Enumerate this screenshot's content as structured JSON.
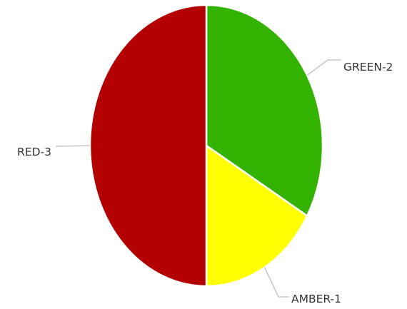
{
  "chart_data": {
    "type": "pie",
    "categories": [
      "GREEN-2",
      "AMBER-1",
      "RED-3"
    ],
    "values": [
      2,
      1,
      3
    ],
    "colors": [
      "#33b300",
      "#ffff00",
      "#b30000"
    ],
    "title": "",
    "legend": "none",
    "labels": "outside with leader lines"
  }
}
